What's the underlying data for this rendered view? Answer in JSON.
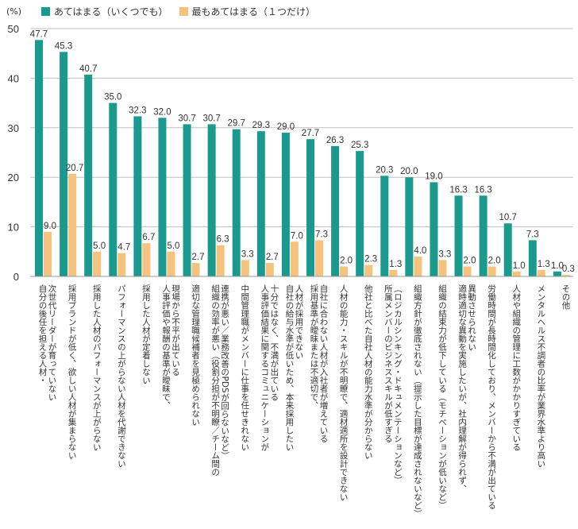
{
  "chart_data": {
    "type": "bar",
    "unit_label": "(%)",
    "ylim": [
      0,
      50
    ],
    "yticks": [
      0,
      10,
      20,
      30,
      40,
      50
    ],
    "grid": true,
    "legend_position": "top-left",
    "series": [
      {
        "name": "あてはまる（いくつでも）",
        "color": "#1a9a8e",
        "values": [
          47.7,
          45.3,
          40.7,
          35.0,
          32.3,
          32.0,
          30.7,
          30.7,
          29.7,
          29.3,
          29.0,
          27.7,
          26.3,
          25.3,
          20.3,
          20.0,
          19.0,
          16.3,
          16.3,
          10.7,
          7.3,
          1.0
        ],
        "labels": [
          "47.7",
          "45.3",
          "40.7",
          "35.0",
          "32.3",
          "32.0",
          "30.7",
          "30.7",
          "29.7",
          "29.3",
          "29.0",
          "27.7",
          "26.3",
          "25.3",
          "20.3",
          "20.0",
          "19.0",
          "16.3",
          "16.3",
          "10.7",
          "7.3",
          "1.0"
        ]
      },
      {
        "name": "最もあてはまる（１つだけ）",
        "color": "#f5c37e",
        "values": [
          9.0,
          20.7,
          5.0,
          4.7,
          6.7,
          5.0,
          2.7,
          6.3,
          3.3,
          2.7,
          7.0,
          7.3,
          2.0,
          2.3,
          1.3,
          4.0,
          3.3,
          2.0,
          2.0,
          1.0,
          1.3,
          0.3
        ],
        "labels": [
          "9.0",
          "20.7",
          "5.0",
          "4.7",
          "6.7",
          "5.0",
          "2.7",
          "6.3",
          "3.3",
          "2.7",
          "7.0",
          "7.3",
          "2.0",
          "2.3",
          "1.3",
          "4.0",
          "3.3",
          "2.0",
          "2.0",
          "1.0",
          "1.3",
          "0.3"
        ]
      }
    ],
    "categories": [
      [
        "自分の後任を担える人材・",
        "次世代リーダーが育っていない"
      ],
      [
        "採用ブランドが低く、欲しい人材が集まらない"
      ],
      [
        "採用した人材のパフォーマンスが上がらない"
      ],
      [
        "パフォーマンスの上がらない人材を代謝できない"
      ],
      [
        "採用した人材が定着しない"
      ],
      [
        "人事評価や報酬の基準が曖昧で、",
        "現場から不平が出ている"
      ],
      [
        "適切な管理職候補者を見極められない"
      ],
      [
        "組織の効率が悪い（役割分担が不明瞭／チーム間の",
        "連携が悪い／業務改善のPDSが回らないなど）"
      ],
      [
        "中間管理職がメンバーに仕事を任せきれない"
      ],
      [
        "人事評価結果に関するコミュニケーションが",
        "十分ではなく、不満が出ている"
      ],
      [
        "自社の給与水準が低いため、本来採用したい",
        "人材が採用できない"
      ],
      [
        "採用基準が曖昧または不適切で、",
        "自社に合わない人材が入社者が増えている"
      ],
      [
        "人材の能力・スキルが不明瞭で、適材適所を設計できない"
      ],
      [
        "他社と比べた自社人材の能力水準が分からない"
      ],
      [
        "所属メンバーのビジネススキルが低すぎる",
        "（ロジカルシンキング・ドキュメンテーションなど）"
      ],
      [
        "組織方針が徹底されない（提示した目標が達成されないなど）"
      ],
      [
        "組織の結束力が低下している（モチベーションが低いなど）"
      ],
      [
        "適時適切な異動を実施したいが、社内理解が得られず、",
        "異動させられない"
      ],
      [
        "労働時間が長時間化しており、メンバーから不満が出ている"
      ],
      [
        "人材や組織の管理に工数がかかりすぎている"
      ],
      [
        "メンタルヘルス不調者の比率が業界水準より高い"
      ],
      [
        "その他"
      ]
    ]
  }
}
